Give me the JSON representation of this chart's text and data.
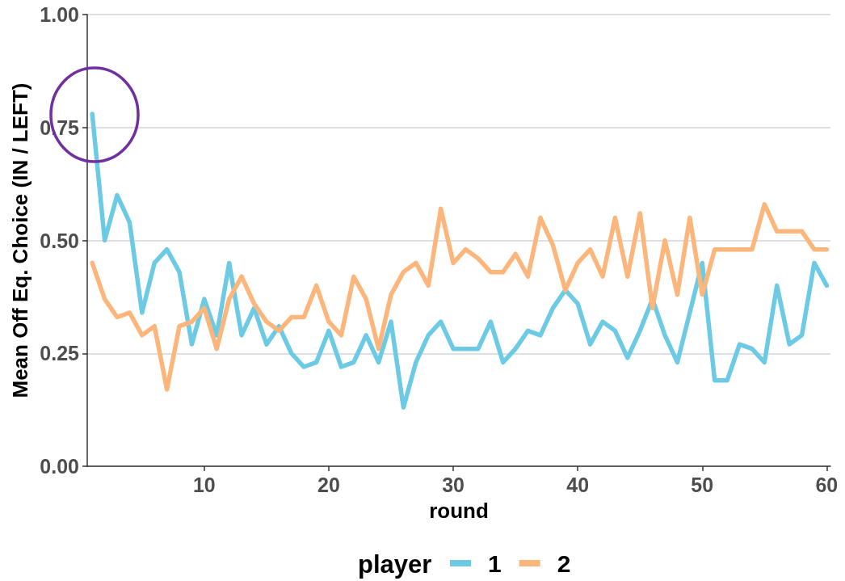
{
  "chart_data": {
    "type": "line",
    "xlabel": "round",
    "ylabel": "Mean Off Eq. Choice (IN / LEFT)",
    "legend_title": "player",
    "legend": "bottom",
    "grid": "y",
    "marker": "none",
    "line_style": "solid",
    "x": [
      1,
      2,
      3,
      4,
      5,
      6,
      7,
      8,
      9,
      10,
      11,
      12,
      13,
      14,
      15,
      16,
      17,
      18,
      19,
      20,
      21,
      22,
      23,
      24,
      25,
      26,
      27,
      28,
      29,
      30,
      31,
      32,
      33,
      34,
      35,
      36,
      37,
      38,
      39,
      40,
      41,
      42,
      43,
      44,
      45,
      46,
      47,
      48,
      49,
      50,
      51,
      52,
      53,
      54,
      55,
      56,
      57,
      58,
      59,
      60
    ],
    "xlim": [
      0.6,
      60.3
    ],
    "xticks": [
      10,
      20,
      30,
      40,
      50,
      60
    ],
    "ylim": [
      0,
      1
    ],
    "yticks": [
      {
        "value": 0,
        "label": "0.00"
      },
      {
        "value": 0.25,
        "label": "0.25"
      },
      {
        "value": 0.5,
        "label": "0.50"
      },
      {
        "value": 0.75,
        "label": "0.75"
      },
      {
        "value": 1,
        "label": "1.00"
      }
    ],
    "series": [
      {
        "name": "1",
        "color": "#6dcae5",
        "values": [
          0.78,
          0.5,
          0.6,
          0.54,
          0.34,
          0.45,
          0.48,
          0.43,
          0.27,
          0.37,
          0.29,
          0.45,
          0.29,
          0.35,
          0.27,
          0.31,
          0.25,
          0.22,
          0.23,
          0.3,
          0.22,
          0.23,
          0.29,
          0.23,
          0.32,
          0.13,
          0.23,
          0.29,
          0.32,
          0.26,
          0.26,
          0.26,
          0.32,
          0.23,
          0.26,
          0.3,
          0.29,
          0.35,
          0.39,
          0.36,
          0.27,
          0.32,
          0.3,
          0.24,
          0.3,
          0.37,
          0.29,
          0.23,
          0.34,
          0.45,
          0.19,
          0.19,
          0.27,
          0.26,
          0.23,
          0.4,
          0.27,
          0.29,
          0.45,
          0.4
        ]
      },
      {
        "name": "2",
        "color": "#fcb67b",
        "values": [
          0.45,
          0.37,
          0.33,
          0.34,
          0.29,
          0.31,
          0.17,
          0.31,
          0.32,
          0.35,
          0.26,
          0.37,
          0.42,
          0.36,
          0.32,
          0.3,
          0.33,
          0.33,
          0.4,
          0.32,
          0.29,
          0.42,
          0.37,
          0.26,
          0.38,
          0.43,
          0.45,
          0.4,
          0.57,
          0.45,
          0.48,
          0.46,
          0.43,
          0.43,
          0.47,
          0.42,
          0.55,
          0.49,
          0.39,
          0.45,
          0.48,
          0.42,
          0.55,
          0.42,
          0.56,
          0.35,
          0.5,
          0.38,
          0.55,
          0.38,
          0.48,
          0.48,
          0.48,
          0.48,
          0.58,
          0.52,
          0.52,
          0.52,
          0.48,
          0.48
        ]
      }
    ]
  }
}
